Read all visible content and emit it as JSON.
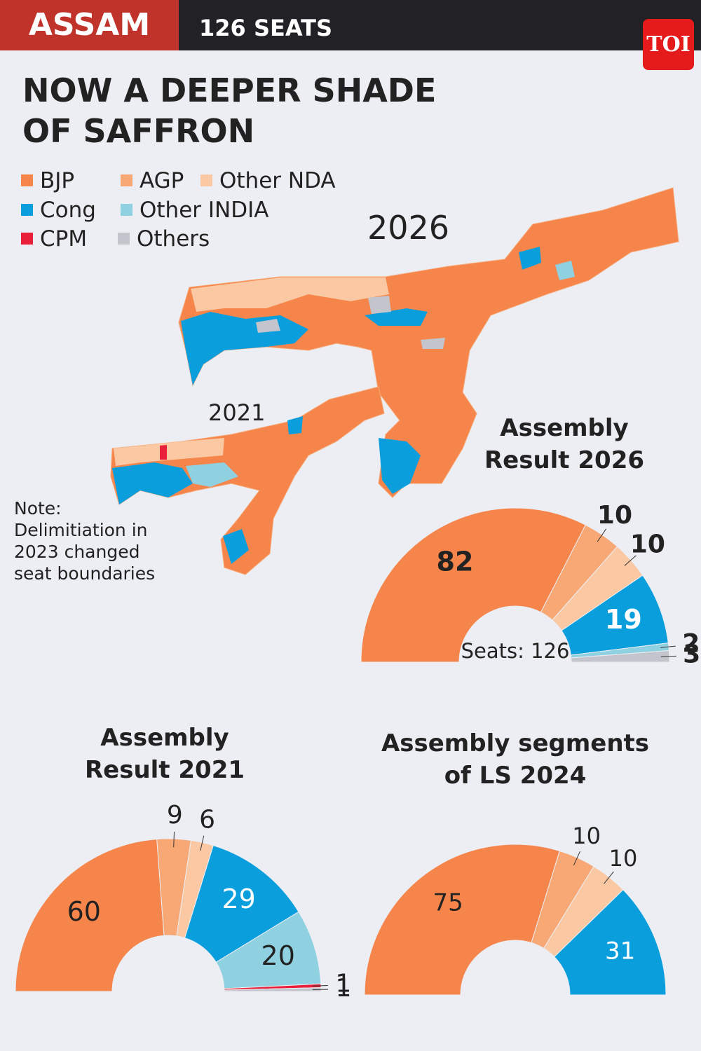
{
  "header": {
    "state": "ASSAM",
    "seats": "126 SEATS",
    "logo": "TOI"
  },
  "title": "NOW A DEEPER SHADE OF SAFFRON",
  "legend": [
    {
      "name": "BJP",
      "color": "#f5854a"
    },
    {
      "name": "AGP",
      "color": "#f7a874"
    },
    {
      "name": "Other NDA",
      "color": "#fac9a3"
    },
    {
      "name": "Cong",
      "color": "#0a9fdc"
    },
    {
      "name": "Other INDIA",
      "color": "#8fd1e0"
    },
    {
      "name": "CPM",
      "color": "#e8203a"
    },
    {
      "name": "Others",
      "color": "#c3c4cc"
    }
  ],
  "maps": {
    "label_2026": "2026",
    "label_2021": "2021"
  },
  "note": {
    "label": "Note:",
    "text": "Delimitiation in 2023 changed seat boundaries"
  },
  "chart_data": [
    {
      "type": "pie",
      "title": "Assembly Result 2026",
      "center_label": "Seats: 126",
      "values": [
        82,
        10,
        10,
        19,
        2,
        3
      ],
      "colors": [
        "#f5854a",
        "#f7a874",
        "#fac9a3",
        "#0a9fdc",
        "#8fd1e0",
        "#c3c4cc"
      ]
    },
    {
      "type": "pie",
      "title": "Assembly Result 2021",
      "values": [
        60,
        9,
        6,
        29,
        20,
        1,
        1
      ],
      "colors": [
        "#f5854a",
        "#f7a874",
        "#fac9a3",
        "#0a9fdc",
        "#8fd1e0",
        "#e8203a",
        "#c3c4cc"
      ]
    },
    {
      "type": "pie",
      "title": "Assembly segments of LS 2024",
      "values": [
        75,
        10,
        10,
        31
      ],
      "colors": [
        "#f5854a",
        "#f7a874",
        "#fac9a3",
        "#0a9fdc"
      ]
    }
  ]
}
